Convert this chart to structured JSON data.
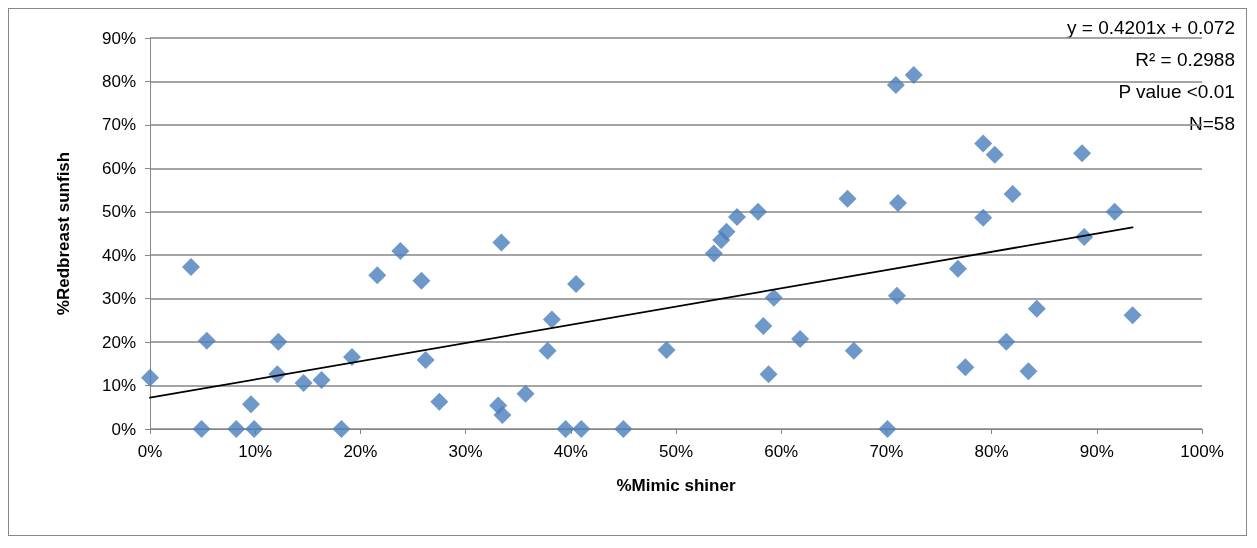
{
  "chart_data": {
    "type": "scatter",
    "xlabel": "%Mimic shiner",
    "ylabel": "%Redbreast sunfish",
    "annotations": [
      "y = 0.4201x + 0.072",
      "R² = 0.2988",
      "P value <0.01",
      "N=58"
    ],
    "series": [
      {
        "color": "#4a7ebb",
        "x": [
          0,
          3.9,
          5.4,
          4.9,
          8.2,
          9.9,
          9.6,
          12.2,
          12.1,
          14.6,
          16.3,
          18.2,
          19.2,
          21.6,
          23.8,
          25.8,
          26.2,
          27.5,
          33.4,
          33.1,
          33.5,
          35.7,
          37.8,
          38.2,
          40.5,
          39.5,
          41.0,
          45.0,
          49.1,
          53.6,
          54.3,
          54.8,
          55.8,
          57.8,
          58.3,
          59.3,
          58.8,
          61.8,
          66.9,
          66.3,
          71.1,
          70.9,
          72.6,
          79.2,
          80.3,
          88.6,
          82.0,
          79.2,
          91.7,
          88.8,
          76.8,
          71.0,
          84.3,
          93.4,
          81.4,
          77.5,
          83.5,
          70.1
        ],
        "values": [
          11.8,
          37.3,
          20.3,
          0,
          0,
          0,
          5.7,
          20.1,
          12.6,
          10.6,
          11.3,
          0,
          16.6,
          35.4,
          41.0,
          34.1,
          15.9,
          6.3,
          42.9,
          5.4,
          3.2,
          8.1,
          18.0,
          25.2,
          33.4,
          0,
          0,
          0,
          18.2,
          40.4,
          43.5,
          45.4,
          48.8,
          50.0,
          23.7,
          30.2,
          12.6,
          20.7,
          18.0,
          53.0,
          52.0,
          79.2,
          81.5,
          65.7,
          63.1,
          63.5,
          54.1,
          48.6,
          50.0,
          44.2,
          36.9,
          30.7,
          27.7,
          26.2,
          20.1,
          14.2,
          13.3,
          0
        ]
      },
      {
        "type": "line",
        "color": "#000000",
        "marker": "none",
        "line_style": "solid",
        "x": [
          0,
          93.4
        ],
        "values": [
          7.2,
          46.4
        ]
      }
    ],
    "xlim": [
      0,
      100
    ],
    "xticks": [
      {
        "value": 0,
        "label": "0%"
      },
      {
        "value": 10,
        "label": "10%"
      },
      {
        "value": 20,
        "label": "20%"
      },
      {
        "value": 30,
        "label": "30%"
      },
      {
        "value": 40,
        "label": "40%"
      },
      {
        "value": 50,
        "label": "50%"
      },
      {
        "value": 60,
        "label": "60%"
      },
      {
        "value": 70,
        "label": "70%"
      },
      {
        "value": 80,
        "label": "80%"
      },
      {
        "value": 90,
        "label": "90%"
      },
      {
        "value": 100,
        "label": "100%"
      }
    ],
    "ylim": [
      0,
      90
    ],
    "yticks": [
      {
        "value": 0,
        "label": "0%"
      },
      {
        "value": 10,
        "label": "10%"
      },
      {
        "value": 20,
        "label": "20%"
      },
      {
        "value": 30,
        "label": "30%"
      },
      {
        "value": 40,
        "label": "40%"
      },
      {
        "value": 50,
        "label": "50%"
      },
      {
        "value": 60,
        "label": "60%"
      },
      {
        "value": 70,
        "label": "70%"
      },
      {
        "value": 80,
        "label": "80%"
      },
      {
        "value": 90,
        "label": "90%"
      }
    ],
    "grid": "y",
    "marker": "diamond"
  }
}
